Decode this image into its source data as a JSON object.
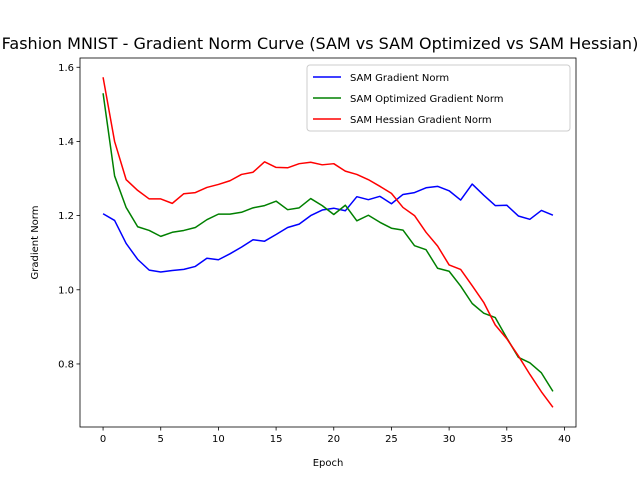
{
  "chart_data": {
    "type": "line",
    "title": "Fashion MNIST - Gradient Norm Curve (SAM vs SAM Optimized vs SAM Hessian)",
    "xlabel": "Epoch",
    "ylabel": "Gradient Norm",
    "xlim": [
      -2,
      41
    ],
    "ylim": [
      0.63,
      1.625
    ],
    "xticks": [
      0,
      5,
      10,
      15,
      20,
      25,
      30,
      35,
      40
    ],
    "yticks": [
      0.8,
      1.0,
      1.2,
      1.4,
      1.6
    ],
    "grid": false,
    "legend_position": "top-right",
    "x": [
      0,
      1,
      2,
      3,
      4,
      5,
      6,
      7,
      8,
      9,
      10,
      11,
      12,
      13,
      14,
      15,
      16,
      17,
      18,
      19,
      20,
      21,
      22,
      23,
      24,
      25,
      26,
      27,
      28,
      29,
      30,
      31,
      32,
      33,
      34,
      35,
      36,
      37,
      38,
      39
    ],
    "series": [
      {
        "name": "SAM Gradient Norm",
        "color": "#0000ff",
        "values": [
          1.205,
          1.187,
          1.125,
          1.082,
          1.053,
          1.048,
          1.052,
          1.055,
          1.063,
          1.085,
          1.081,
          1.097,
          1.115,
          1.135,
          1.131,
          1.149,
          1.168,
          1.177,
          1.2,
          1.215,
          1.22,
          1.213,
          1.251,
          1.243,
          1.252,
          1.232,
          1.257,
          1.262,
          1.275,
          1.279,
          1.267,
          1.242,
          1.285,
          1.255,
          1.227,
          1.228,
          1.199,
          1.19,
          1.214,
          1.201
        ]
      },
      {
        "name": "SAM Optimized Gradient Norm",
        "color": "#008000",
        "values": [
          1.53,
          1.307,
          1.222,
          1.17,
          1.16,
          1.144,
          1.155,
          1.16,
          1.168,
          1.189,
          1.204,
          1.204,
          1.209,
          1.221,
          1.227,
          1.239,
          1.216,
          1.221,
          1.246,
          1.227,
          1.203,
          1.228,
          1.186,
          1.201,
          1.182,
          1.166,
          1.161,
          1.119,
          1.108,
          1.058,
          1.05,
          1.01,
          0.963,
          0.937,
          0.925,
          0.87,
          0.818,
          0.803,
          0.776,
          0.726
        ]
      },
      {
        "name": "SAM Hessian Gradient Norm",
        "color": "#ff0000",
        "values": [
          1.573,
          1.4,
          1.297,
          1.268,
          1.245,
          1.245,
          1.233,
          1.259,
          1.262,
          1.276,
          1.284,
          1.294,
          1.311,
          1.317,
          1.345,
          1.33,
          1.329,
          1.34,
          1.344,
          1.337,
          1.34,
          1.32,
          1.311,
          1.297,
          1.279,
          1.26,
          1.222,
          1.2,
          1.155,
          1.118,
          1.067,
          1.055,
          1.011,
          0.966,
          0.905,
          0.868,
          0.822,
          0.772,
          0.725,
          0.683
        ]
      }
    ]
  }
}
